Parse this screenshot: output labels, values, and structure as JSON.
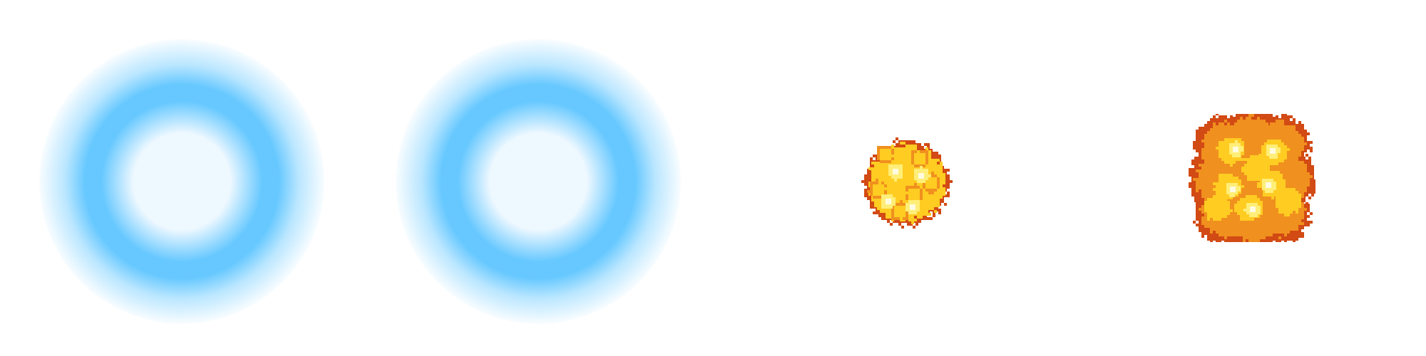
{
  "sprites": [
    {
      "name": "blue-energy-ring",
      "frame": 1
    },
    {
      "name": "blue-energy-ring",
      "frame": 2
    },
    {
      "name": "small-fire-explosion",
      "frame": 1
    },
    {
      "name": "large-fire-explosion",
      "frame": 2
    }
  ],
  "colors": {
    "background": "#ffffff",
    "ring_blue": "#66c8ff",
    "ring_center": "#eef8ff",
    "fire_outline": "#d24a14",
    "fire_orange": "#f0901e",
    "fire_yellow": "#ffcc22",
    "fire_bright": "#ffee77",
    "fire_white": "#fffbe0"
  }
}
